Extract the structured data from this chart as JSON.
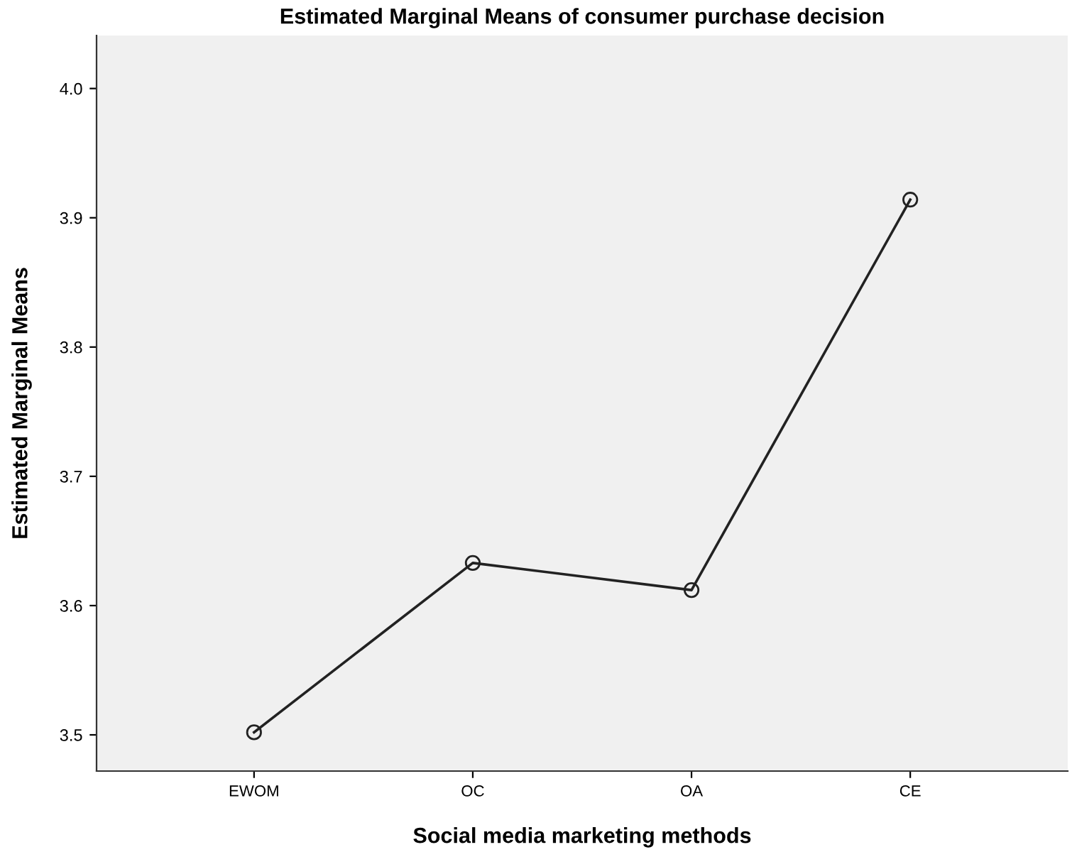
{
  "chart_data": {
    "type": "line",
    "title": "Estimated Marginal Means of consumer purchase decision",
    "xlabel": "Social media marketing methods",
    "ylabel": "Estimated Marginal Means",
    "categories": [
      "EWOM",
      "OC",
      "OA",
      "CE"
    ],
    "series": [
      {
        "color": "#222222",
        "values": [
          3.502,
          3.633,
          3.612,
          3.914
        ]
      }
    ],
    "ylim": [
      3.472,
      4.041
    ],
    "yticks": [
      {
        "value": 3.5,
        "label": "3.5"
      },
      {
        "value": 3.6,
        "label": "3.6"
      },
      {
        "value": 3.7,
        "label": "3.7"
      },
      {
        "value": 3.8,
        "label": "3.8"
      },
      {
        "value": 3.9,
        "label": "3.9"
      },
      {
        "value": 4.0,
        "label": "4.0"
      }
    ],
    "marker": "circle",
    "line_style": "solid"
  }
}
